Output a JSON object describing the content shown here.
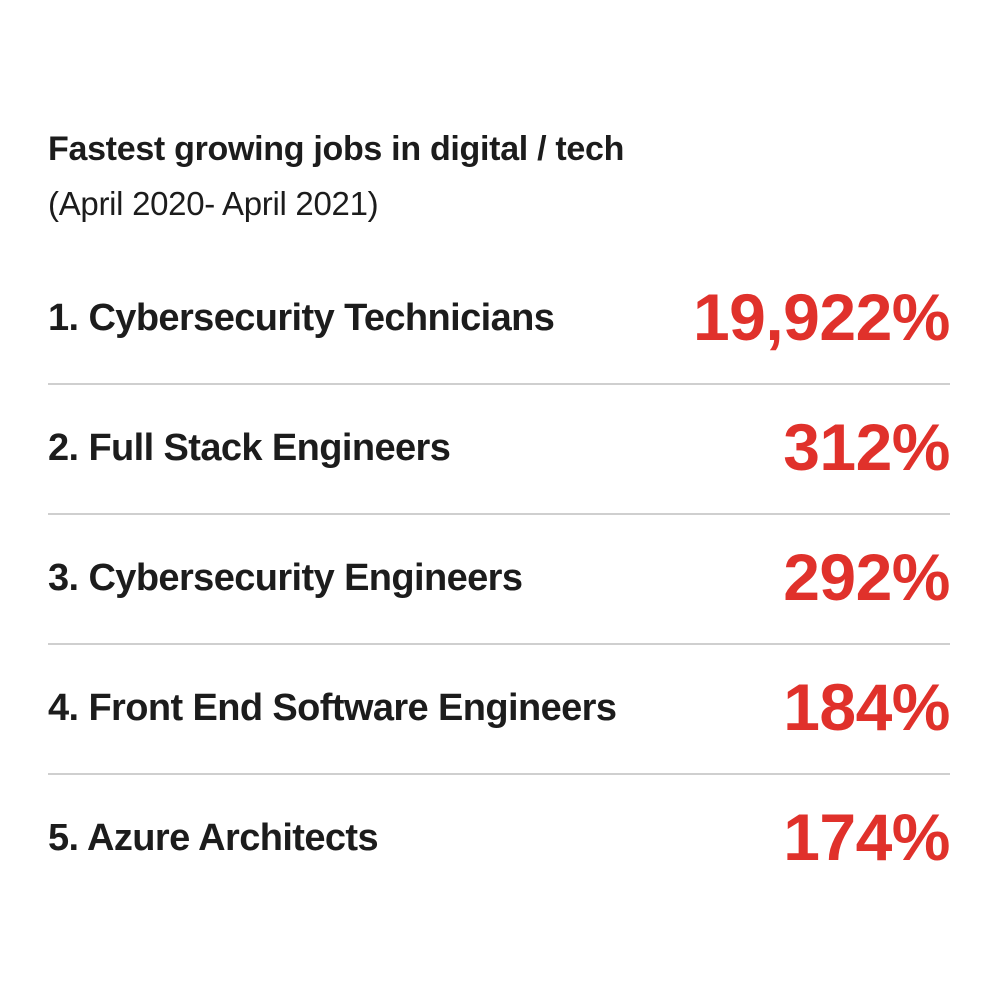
{
  "chart_data": {
    "type": "table",
    "title": "Fastest growing jobs in digital / tech",
    "subtitle": "(April 2020- April 2021)",
    "rows": [
      {
        "label": "1. Cybersecurity Technicians",
        "value_text": "19,922%",
        "value": 19922
      },
      {
        "label": "2. Full Stack Engineers",
        "value_text": "312%",
        "value": 312
      },
      {
        "label": "3. Cybersecurity Engineers",
        "value_text": "292%",
        "value": 292
      },
      {
        "label": "4. Front End Software Engineers",
        "value_text": "184%",
        "value": 184
      },
      {
        "label": "5. Azure Architects",
        "value_text": "174%",
        "value": 174
      }
    ]
  },
  "colors": {
    "accent": "#e0312b",
    "text": "#1c1c1c",
    "divider": "#cfcfcf",
    "background": "#ffffff"
  }
}
